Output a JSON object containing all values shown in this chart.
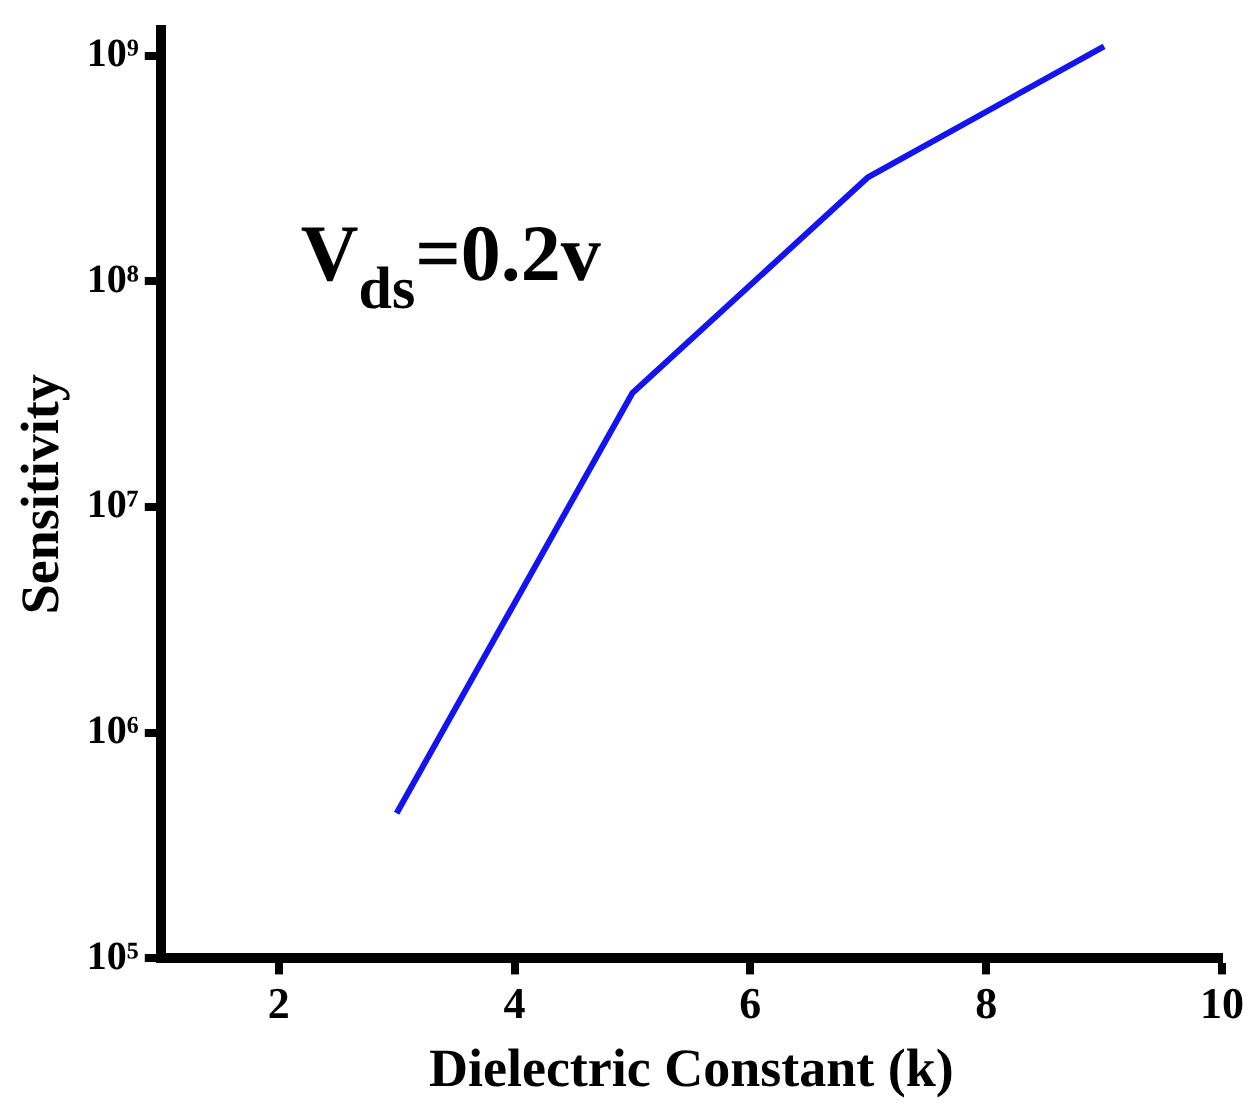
{
  "chart_data": {
    "type": "line",
    "xlabel": "Dielectric Constant (k)",
    "ylabel": "Sensitivity",
    "log": "y",
    "grid": false,
    "legend": false,
    "marker": "none",
    "line_style": "solid",
    "xlim": [
      1,
      10
    ],
    "xticks": [
      2,
      4,
      6,
      8,
      10
    ],
    "ylim": [
      100000,
      1300000000
    ],
    "yticks": [
      {
        "value": 100000,
        "label": "10⁵"
      },
      {
        "value": 1000000,
        "label": "10⁶"
      },
      {
        "value": 10000000,
        "label": "10⁷"
      },
      {
        "value": 100000000,
        "label": "10⁸"
      },
      {
        "value": 1000000000,
        "label": "10⁹"
      }
    ],
    "x": [
      3,
      5,
      7,
      9
    ],
    "series": [
      {
        "color": "#1414f0",
        "values": [
          440000,
          32000000,
          290000000,
          1100000000
        ]
      }
    ],
    "annotations": [
      "V$_{ds}$=0.2v"
    ]
  }
}
